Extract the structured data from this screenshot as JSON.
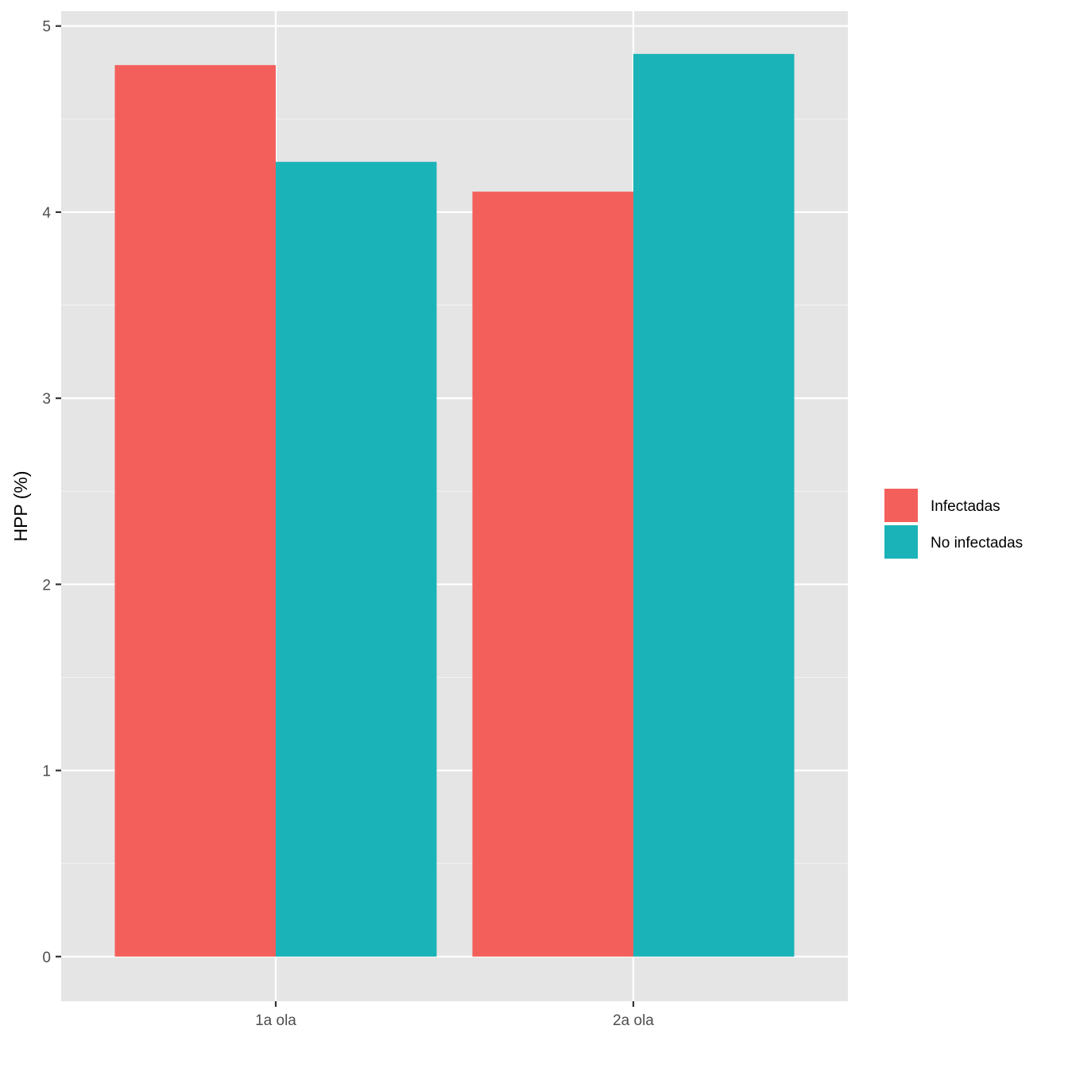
{
  "chart_data": {
    "type": "bar",
    "categories": [
      "1a ola",
      "2a ola"
    ],
    "series": [
      {
        "name": "Infectadas",
        "values": [
          4.79,
          4.11
        ],
        "color": "#F8766D"
      },
      {
        "name": "No infectadas",
        "values": [
          4.27,
          4.85
        ],
        "color": "#00BFC4"
      }
    ],
    "ylabel": "HPP (%)",
    "xlabel": "",
    "ylim": [
      -0.24,
      5.08
    ],
    "yticks": [
      "0",
      "1",
      "2",
      "3",
      "4",
      "5"
    ],
    "grid": true,
    "legend_position": "right",
    "panel_background": "#E5E5E5",
    "bar_colors": [
      "#F3605C",
      "#1AB3B8"
    ]
  }
}
